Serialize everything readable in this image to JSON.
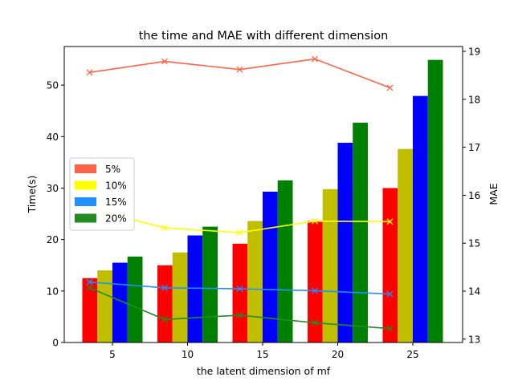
{
  "chart_data": {
    "type": "bar",
    "title": "the time and MAE with different dimension",
    "xlabel": "the latent dimension of mf",
    "ylabel": "Time(s)",
    "y2label": "MAE",
    "categories": [
      "5",
      "10",
      "15",
      "20",
      "25"
    ],
    "x_ticks": [
      "5",
      "10",
      "15",
      "20",
      "25"
    ],
    "ylim": [
      0,
      57.5
    ],
    "y_ticks": [
      0,
      10,
      20,
      30,
      40,
      50
    ],
    "y2lim": [
      12.93,
      19.1
    ],
    "y2_ticks": [
      13,
      14,
      15,
      16,
      17,
      18,
      19
    ],
    "legend_position": "center-left",
    "series": [
      {
        "name": "5%",
        "bar_color": "#ff0000",
        "line_color": "#ff6347",
        "legend_color": "#ff6347",
        "time": [
          12.5,
          15.0,
          19.2,
          23.6,
          30.0
        ],
        "mae": [
          18.56,
          18.79,
          18.62,
          18.84,
          18.24
        ]
      },
      {
        "name": "10%",
        "bar_color": "#bfbf00",
        "line_color": "#ffff00",
        "legend_color": "#ffff00",
        "time": [
          14.0,
          17.5,
          23.6,
          29.8,
          37.6
        ],
        "mae": [
          15.72,
          15.32,
          15.22,
          15.46,
          15.45
        ]
      },
      {
        "name": "15%",
        "bar_color": "#0000ff",
        "line_color": "#1e90ff",
        "legend_color": "#1e90ff",
        "time": [
          15.5,
          20.8,
          29.3,
          38.8,
          47.9
        ],
        "mae": [
          14.19,
          14.07,
          14.05,
          14.01,
          13.94
        ]
      },
      {
        "name": "20%",
        "bar_color": "#008000",
        "line_color": "#228b22",
        "legend_color": "#228b22",
        "time": [
          16.7,
          22.5,
          31.5,
          42.7,
          54.9
        ],
        "mae": [
          14.07,
          13.41,
          13.5,
          13.34,
          13.22
        ]
      }
    ]
  }
}
